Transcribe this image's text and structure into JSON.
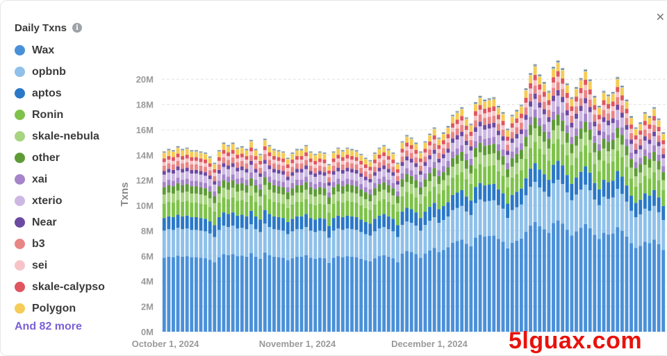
{
  "legend": {
    "title": "Daily Txns",
    "items": [
      {
        "label": "Wax",
        "color": "#4a90d9"
      },
      {
        "label": "opbnb",
        "color": "#8ec0ea"
      },
      {
        "label": "aptos",
        "color": "#2a78c8"
      },
      {
        "label": "Ronin",
        "color": "#7ec24a"
      },
      {
        "label": "skale-nebula",
        "color": "#a8d481"
      },
      {
        "label": "other",
        "color": "#5e9b36"
      },
      {
        "label": "xai",
        "color": "#a584c9"
      },
      {
        "label": "xterio",
        "color": "#cdb8e4"
      },
      {
        "label": "Near",
        "color": "#6b4aa2"
      },
      {
        "label": "b3",
        "color": "#e88686"
      },
      {
        "label": "sei",
        "color": "#f6c4c8"
      },
      {
        "label": "skale-calypso",
        "color": "#df5560"
      },
      {
        "label": "Polygon",
        "color": "#f5cc57"
      }
    ],
    "more": "And 82 more"
  },
  "watermark": "5lguax.com",
  "chart_data": {
    "type": "bar",
    "stacked": true,
    "ylabel": "Txns",
    "ylim": [
      0,
      21000000
    ],
    "yticks": [
      "0M",
      "2M",
      "4M",
      "6M",
      "8M",
      "10M",
      "12M",
      "14M",
      "16M",
      "18M",
      "20M"
    ],
    "xticks": [
      "October 1, 2024",
      "November 1, 2024",
      "December 1, 2024"
    ],
    "grid": true,
    "totals_M": [
      14.3,
      14.5,
      14.4,
      14.7,
      14.5,
      14.6,
      14.4,
      14.4,
      14.3,
      14.2,
      13.9,
      13.4,
      14.4,
      15.0,
      14.8,
      15.0,
      14.6,
      14.7,
      14.5,
      15.2,
      14.5,
      14.1,
      15.3,
      14.8,
      14.5,
      14.4,
      14.3,
      13.8,
      14.2,
      14.5,
      14.5,
      14.8,
      14.3,
      14.1,
      14.3,
      14.2,
      13.3,
      14.3,
      14.6,
      14.4,
      14.6,
      14.5,
      14.4,
      14.1,
      13.8,
      13.6,
      14.2,
      14.6,
      14.8,
      14.5,
      14.2,
      13.4,
      15.1,
      15.6,
      15.4,
      15.0,
      14.3,
      15.1,
      15.7,
      16.2,
      15.4,
      15.8,
      16.3,
      17.2,
      17.5,
      17.8,
      17.0,
      16.5,
      18.2,
      18.7,
      18.4,
      18.5,
      18.6,
      17.9,
      17.4,
      16.1,
      17.2,
      17.6,
      18.0,
      19.3,
      20.5,
      21.2,
      20.4,
      19.8,
      19.1,
      21.0,
      21.5,
      20.9,
      19.7,
      18.6,
      19.4,
      20.1,
      20.8,
      20.0,
      18.7,
      17.9,
      19.1,
      18.8,
      19.0,
      20.2,
      19.5,
      18.4,
      17.1,
      16.2,
      16.6,
      17.4,
      17.1,
      17.8,
      16.9,
      15.8
    ],
    "series": [
      {
        "name": "Wax",
        "share": 0.41
      },
      {
        "name": "opbnb",
        "share": 0.15
      },
      {
        "name": "aptos",
        "share": 0.07
      },
      {
        "name": "Ronin",
        "share": 0.08
      },
      {
        "name": "skale-nebula",
        "share": 0.05
      },
      {
        "name": "other",
        "share": 0.04
      },
      {
        "name": "xai",
        "share": 0.03
      },
      {
        "name": "xterio",
        "share": 0.04
      },
      {
        "name": "Near",
        "share": 0.02
      },
      {
        "name": "b3",
        "share": 0.03
      },
      {
        "name": "sei",
        "share": 0.02
      },
      {
        "name": "skale-calypso",
        "share": 0.02
      },
      {
        "name": "Polygon",
        "share": 0.03
      }
    ],
    "rest_colors": [
      "#fbe39a",
      "#3f7fcf",
      "#9dd9c9",
      "#27348b",
      "#f0a050",
      "#6fc1e6"
    ]
  }
}
